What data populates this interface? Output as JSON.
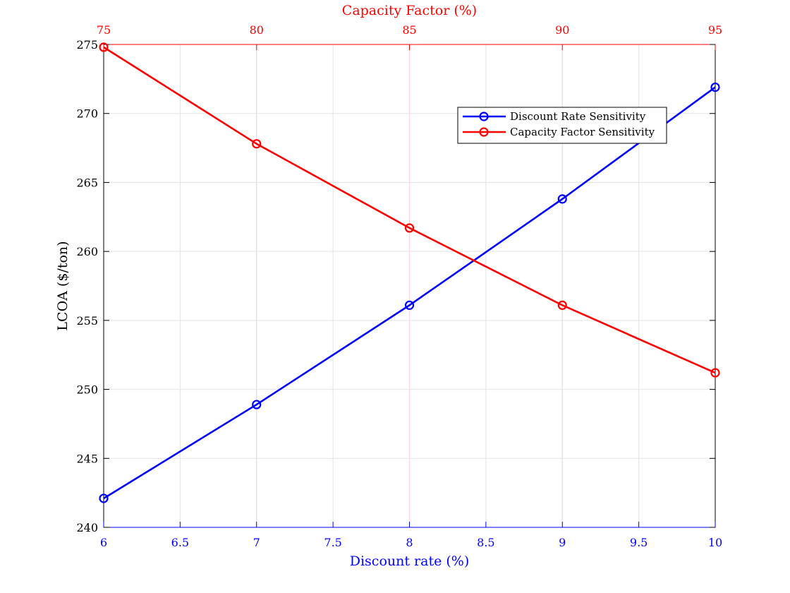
{
  "chart_data": {
    "type": "line",
    "top_axis": {
      "title": "Capacity Factor (%)",
      "range": [
        75,
        95
      ],
      "ticks": [
        75,
        80,
        85,
        90,
        95
      ],
      "color": "#ff0000"
    },
    "bottom_axis": {
      "title": "Discount rate (%)",
      "range": [
        6,
        10
      ],
      "ticks": [
        6,
        6.5,
        7,
        7.5,
        8,
        8.5,
        9,
        9.5,
        10
      ],
      "color": "#0000ff"
    },
    "y_axis": {
      "title": "LCOA ($/ton)",
      "range": [
        240,
        275
      ],
      "ticks": [
        240,
        245,
        250,
        255,
        260,
        265,
        270,
        275
      ],
      "color": "#000000"
    },
    "grid": true,
    "legend_position": "top-right",
    "series": [
      {
        "name": "Discount Rate Sensitivity",
        "axis": "bottom",
        "color": "#0000ff",
        "marker": "circle",
        "x": [
          6,
          7,
          8,
          9,
          10
        ],
        "y": [
          242.1,
          248.9,
          256.1,
          263.8,
          271.9
        ]
      },
      {
        "name": "Capacity Factor Sensitivity",
        "axis": "top",
        "color": "#ff0000",
        "marker": "circle",
        "x": [
          75,
          80,
          85,
          90,
          95
        ],
        "y": [
          274.8,
          267.8,
          261.7,
          256.1,
          251.2
        ]
      }
    ]
  }
}
